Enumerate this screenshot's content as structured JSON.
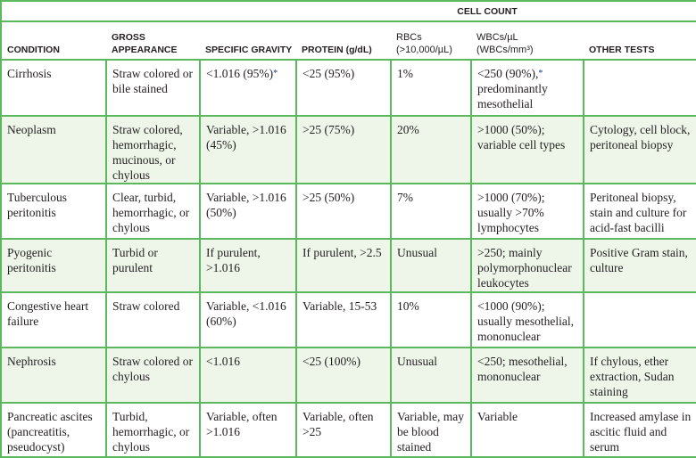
{
  "header": {
    "cell_count": "CELL COUNT",
    "columns": [
      "CONDITION",
      "GROSS APPEARANCE",
      "SPECIFIC GRAVITY",
      "PROTEIN (g/dL)",
      "RBCs (>10,000/µL)",
      "WBCs/µL (WBCs/mm³)",
      "OTHER TESTS"
    ],
    "rbc_line1": "RBCs",
    "rbc_line2": "(>10,000/µL)",
    "wbc_line1": "WBCs/µL",
    "wbc_line2": "(WBCs/mm³)",
    "gross_line1": "GROSS",
    "gross_line2": "APPEARANCE"
  },
  "footnote_marker": "*",
  "rows": [
    {
      "condition": "Cirrhosis",
      "appearance": "Straw colored or bile stained",
      "gravity": "<1.016 (95%)",
      "gravity_mark": "*",
      "protein": "<25 (95%)",
      "rbc": "1%",
      "wbc": "<250 (90%),",
      "wbc_mark": "*",
      "wbc_rest": "predominantly mesothelial",
      "other": ""
    },
    {
      "condition": "Neoplasm",
      "appearance": "Straw colored, hemorrhagic, mucinous, or chylous",
      "gravity": "Variable, >1.016 (45%)",
      "protein": ">25 (75%)",
      "rbc": "20%",
      "wbc": ">1000 (50%); variable cell types",
      "other": "Cytology, cell block, peritoneal biopsy"
    },
    {
      "condition": "Tuberculous peritonitis",
      "appearance": "Clear, turbid, hemorrhagic, or chylous",
      "gravity": "Variable, >1.016 (50%)",
      "protein": ">25 (50%)",
      "rbc": "7%",
      "wbc": ">1000 (70%); usually >70% lymphocytes",
      "other": "Peritoneal biopsy, stain and culture for acid-fast bacilli"
    },
    {
      "condition": "Pyogenic peritonitis",
      "appearance": "Turbid or purulent",
      "gravity": "If purulent, >1.016",
      "protein": "If purulent, >2.5",
      "rbc": "Unusual",
      "wbc": ">250; mainly polymorphonuclear leukocytes",
      "other": "Positive Gram stain, culture"
    },
    {
      "condition": "Congestive heart failure",
      "appearance": "Straw colored",
      "gravity": "Variable, <1.016 (60%)",
      "protein": "Variable, 15-53",
      "rbc": "10%",
      "wbc": "<1000 (90%); usually mesothelial, mononuclear",
      "other": ""
    },
    {
      "condition": "Nephrosis",
      "appearance": "Straw colored or chylous",
      "gravity": "<1.016",
      "protein": "<25 (100%)",
      "rbc": "Unusual",
      "wbc": "<250; mesothelial, mononuclear",
      "other": "If chylous, ether extraction, Sudan staining"
    },
    {
      "condition": "Pancreatic ascites (pancreatitis, pseudocyst)",
      "appearance": "Turbid, hemorrhagic, or chylous",
      "gravity": "Variable, often >1.016",
      "protein": "Variable, often >25",
      "rbc": "Variable, may be blood stained",
      "wbc": "Variable",
      "other": "Increased amylase in ascitic fluid and serum"
    }
  ]
}
